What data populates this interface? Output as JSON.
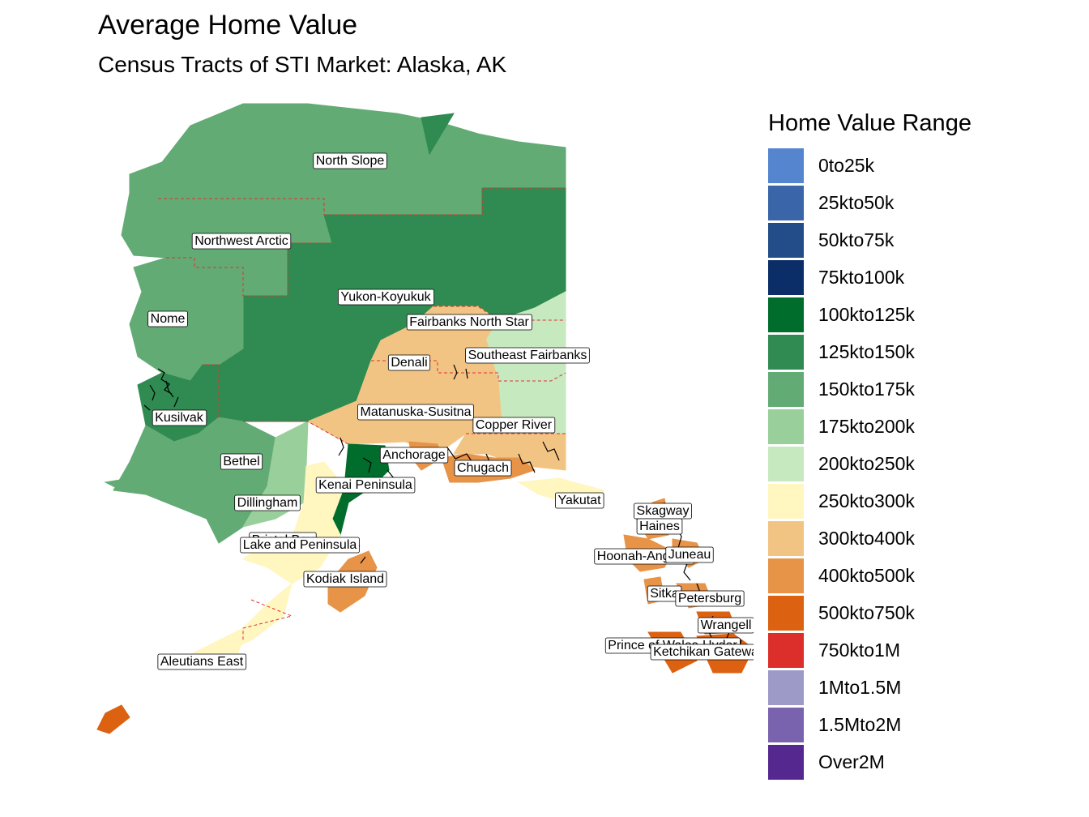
{
  "title": "Average Home Value",
  "subtitle": "Census Tracts of STI Market: Alaska, AK",
  "legend": {
    "title": "Home Value Range",
    "items": [
      {
        "label": "0to25k",
        "color": "#5585cf"
      },
      {
        "label": "25kto50k",
        "color": "#3a65a8"
      },
      {
        "label": "50kto75k",
        "color": "#234d88"
      },
      {
        "label": "75kto100k",
        "color": "#0b2d68"
      },
      {
        "label": "100kto125k",
        "color": "#006d2c"
      },
      {
        "label": "125kto150k",
        "color": "#2f8b51"
      },
      {
        "label": "150kto175k",
        "color": "#63ab75"
      },
      {
        "label": "175kto200k",
        "color": "#99cf9b"
      },
      {
        "label": "200kto250k",
        "color": "#c7e9c0"
      },
      {
        "label": "250kto300k",
        "color": "#fff6c0"
      },
      {
        "label": "300kto400k",
        "color": "#f2c484"
      },
      {
        "label": "400kto500k",
        "color": "#e79348"
      },
      {
        "label": "500kto750k",
        "color": "#dc6111"
      },
      {
        "label": "750kto1M",
        "color": "#dc2f2b"
      },
      {
        "label": "1Mto1.5M",
        "color": "#9e9ac8"
      },
      {
        "label": "1.5Mto2M",
        "color": "#7a63ae"
      },
      {
        "label": "Over2M",
        "color": "#54288f"
      }
    ]
  },
  "regions": [
    {
      "name": "North Slope",
      "range": "150kto175k"
    },
    {
      "name": "Northwest Arctic",
      "range": "150kto175k"
    },
    {
      "name": "Yukon-Koyukuk",
      "range": "125kto150k"
    },
    {
      "name": "Nome",
      "range": "150kto175k"
    },
    {
      "name": "Fairbanks North Star",
      "range": "300kto400k"
    },
    {
      "name": "Southeast Fairbanks",
      "range": "200kto250k"
    },
    {
      "name": "Denali",
      "range": "300kto400k"
    },
    {
      "name": "Matanuska-Susitna",
      "range": "300kto400k"
    },
    {
      "name": "Copper River",
      "range": "300kto400k"
    },
    {
      "name": "Kusilvak",
      "range": "125kto150k"
    },
    {
      "name": "Bethel",
      "range": "150kto175k"
    },
    {
      "name": "Anchorage",
      "range": "400kto500k"
    },
    {
      "name": "Chugach",
      "range": "400kto500k"
    },
    {
      "name": "Kenai Peninsula",
      "range": "100kto125k"
    },
    {
      "name": "Dillingham",
      "range": "175kto200k"
    },
    {
      "name": "Bristol Bay",
      "range": "250kto300k"
    },
    {
      "name": "Lake and Peninsula",
      "range": "250kto300k"
    },
    {
      "name": "Kodiak Island",
      "range": "400kto500k"
    },
    {
      "name": "Aleutians East",
      "range": "250kto300k"
    },
    {
      "name": "Yakutat",
      "range": "250kto300k"
    },
    {
      "name": "Skagway",
      "range": "400kto500k"
    },
    {
      "name": "Haines",
      "range": "400kto500k"
    },
    {
      "name": "Hoonah-Angoon",
      "range": "400kto500k"
    },
    {
      "name": "Juneau",
      "range": "400kto500k"
    },
    {
      "name": "Sitka",
      "range": "400kto500k"
    },
    {
      "name": "Petersburg",
      "range": "400kto500k"
    },
    {
      "name": "Wrangell",
      "range": "500kto750k"
    },
    {
      "name": "Prince of Wales-Hyder",
      "range": "500kto750k"
    },
    {
      "name": "Ketchikan Gateway",
      "range": "500kto750k"
    }
  ]
}
